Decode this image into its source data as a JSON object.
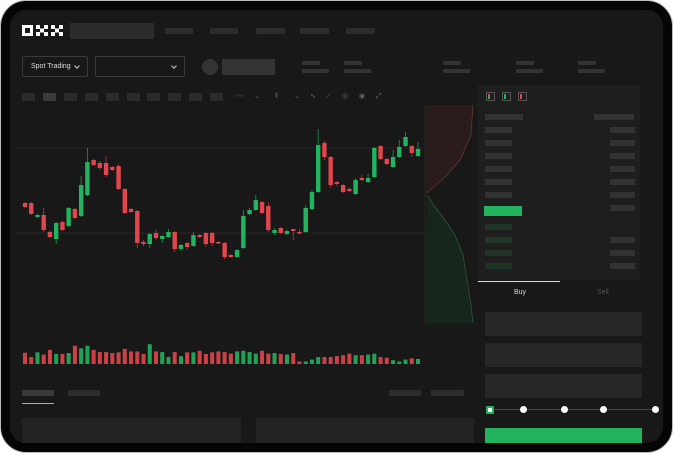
{
  "brand": {
    "logo": "OKX"
  },
  "toolbar": {
    "market_select": "Spot Trading",
    "pair_select": ""
  },
  "icons": [
    "chevron-down-icon",
    "indicator-icon",
    "candle-type-icon",
    "drawing-line-icon",
    "ruler-icon",
    "camera-icon",
    "settings-icon",
    "fullscreen-icon",
    "orderbook-both-icon",
    "orderbook-bids-icon",
    "orderbook-asks-icon"
  ],
  "colors": {
    "up": "#22b35e",
    "down": "#e0464b",
    "background": "#181818",
    "panel": "#1e1e1e"
  },
  "trade": {
    "tabs": [
      "Buy",
      "Sell"
    ],
    "active_tab": "Buy",
    "leverage_steps": 5,
    "selected_step": 0
  },
  "chart_data": {
    "type": "candlestick",
    "title": "",
    "xlabel": "",
    "ylabel": "",
    "ylim": [
      0,
      140
    ],
    "grid": true,
    "candles_ohlc": [
      [
        57,
        58,
        52,
        53
      ],
      [
        57,
        58,
        45,
        46
      ],
      [
        43,
        46,
        42,
        45
      ],
      [
        45,
        52,
        28,
        30
      ],
      [
        28,
        29,
        22,
        23
      ],
      [
        21,
        38,
        16,
        37
      ],
      [
        38,
        39,
        29,
        30
      ],
      [
        34,
        53,
        33,
        52
      ],
      [
        51,
        52,
        41,
        42
      ],
      [
        44,
        84,
        43,
        75
      ],
      [
        65,
        112,
        64,
        98
      ],
      [
        100,
        101,
        94,
        95
      ],
      [
        97,
        99,
        90,
        92
      ],
      [
        97,
        104,
        83,
        85
      ],
      [
        93,
        94,
        89,
        90
      ],
      [
        94,
        96,
        70,
        71
      ],
      [
        71,
        72,
        46,
        47
      ],
      [
        51,
        52,
        47,
        48
      ],
      [
        49,
        50,
        12,
        17
      ],
      [
        18,
        20,
        14,
        16
      ],
      [
        16,
        27,
        12,
        26
      ],
      [
        27,
        30,
        20,
        22
      ],
      [
        21,
        25,
        17,
        24
      ],
      [
        23,
        31,
        22,
        28
      ],
      [
        28,
        29,
        8,
        11
      ],
      [
        11,
        16,
        9,
        15
      ],
      [
        17,
        18,
        10,
        13
      ],
      [
        14,
        28,
        13,
        25
      ],
      [
        25,
        26,
        22,
        23
      ],
      [
        27,
        28,
        13,
        16
      ],
      [
        27,
        28,
        14,
        17
      ],
      [
        18,
        19,
        16,
        17
      ],
      [
        17,
        18,
        1,
        3
      ],
      [
        5,
        6,
        2,
        3
      ],
      [
        3,
        11,
        2,
        10
      ],
      [
        12,
        50,
        11,
        44
      ],
      [
        46,
        52,
        45,
        50
      ],
      [
        50,
        65,
        49,
        60
      ],
      [
        58,
        59,
        46,
        47
      ],
      [
        54,
        58,
        28,
        30
      ],
      [
        27,
        32,
        25,
        30
      ],
      [
        32,
        33,
        26,
        27
      ],
      [
        26,
        30,
        25,
        29
      ],
      [
        31,
        31,
        20,
        29
      ],
      [
        28,
        31,
        26,
        27
      ],
      [
        28,
        55,
        27,
        52
      ],
      [
        51,
        70,
        50,
        68
      ],
      [
        68,
        131,
        67,
        115
      ],
      [
        117,
        119,
        100,
        103
      ],
      [
        103,
        104,
        72,
        75
      ],
      [
        78,
        79,
        74,
        76
      ],
      [
        75,
        76,
        67,
        68
      ],
      [
        71,
        73,
        68,
        69
      ],
      [
        66,
        82,
        65,
        80
      ],
      [
        82,
        85,
        79,
        80
      ],
      [
        78,
        86,
        77,
        82
      ],
      [
        83,
        113,
        82,
        112
      ],
      [
        114,
        115,
        100,
        101
      ],
      [
        101,
        102,
        95,
        96
      ],
      [
        93,
        110,
        92,
        103
      ],
      [
        103,
        120,
        102,
        113
      ],
      [
        114,
        128,
        113,
        123
      ],
      [
        114,
        115,
        103,
        107
      ],
      [
        104,
        118,
        103,
        111
      ]
    ],
    "volume": [
      36,
      22,
      37,
      30,
      45,
      32,
      32,
      35,
      58,
      50,
      58,
      45,
      38,
      38,
      35,
      37,
      48,
      40,
      40,
      32,
      63,
      40,
      38,
      22,
      38,
      25,
      37,
      37,
      42,
      32,
      37,
      40,
      38,
      33,
      40,
      42,
      38,
      33,
      42,
      33,
      35,
      32,
      30,
      35,
      8,
      8,
      14,
      22,
      22,
      22,
      25,
      28,
      33,
      28,
      28,
      30,
      33,
      22,
      20,
      12,
      8,
      14,
      18,
      16
    ]
  }
}
